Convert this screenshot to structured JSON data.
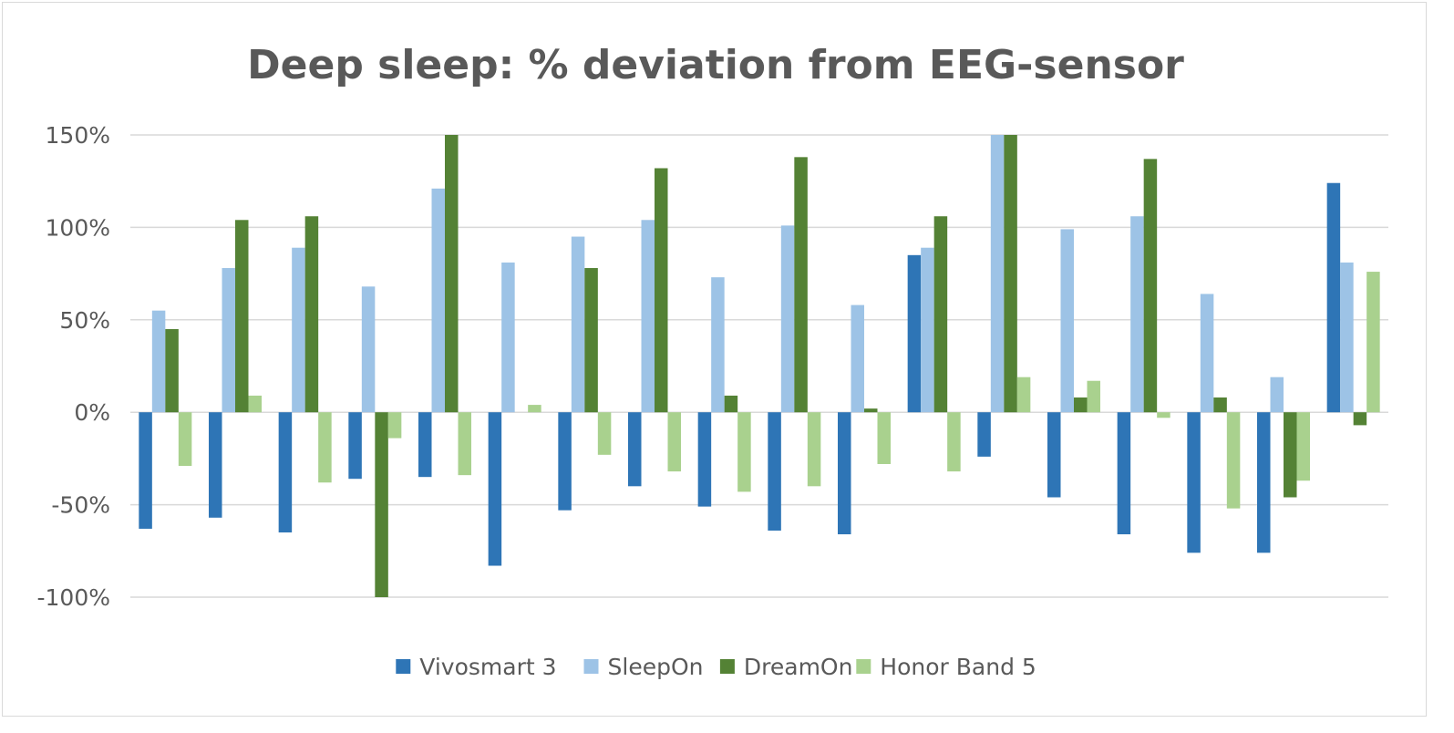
{
  "chart_data": {
    "type": "bar",
    "title": "Deep sleep: % deviation from EEG-sensor",
    "xlabel": "",
    "ylabel": "",
    "ylim": [
      -100,
      150
    ],
    "y_ticks": [
      {
        "value": 150,
        "label": "150%"
      },
      {
        "value": 100,
        "label": "100%"
      },
      {
        "value": 50,
        "label": "50%"
      },
      {
        "value": 0,
        "label": "0%"
      },
      {
        "value": -50,
        "label": "-50%"
      },
      {
        "value": -100,
        "label": "-100%"
      }
    ],
    "grid": true,
    "legend_position": "bottom",
    "categories_count": 18,
    "series": [
      {
        "name": "Vivosmart 3",
        "color": "#2e75b6",
        "values": [
          -63,
          -57,
          -65,
          -36,
          -35,
          -83,
          -53,
          -40,
          -51,
          -64,
          -66,
          85,
          -24,
          -46,
          -66,
          -76,
          -76,
          124
        ]
      },
      {
        "name": "SleepOn",
        "color": "#9dc3e6",
        "values": [
          55,
          78,
          89,
          68,
          121,
          81,
          95,
          104,
          73,
          101,
          58,
          89,
          150,
          99,
          106,
          64,
          19,
          81
        ]
      },
      {
        "name": "DreamOn",
        "color": "#548235",
        "values": [
          45,
          104,
          106,
          -100,
          150,
          0,
          78,
          132,
          9,
          138,
          2,
          106,
          150,
          8,
          137,
          8,
          -46,
          -7
        ]
      },
      {
        "name": "Honor Band 5",
        "color": "#a9d18e",
        "values": [
          -29,
          9,
          -38,
          -14,
          -34,
          4,
          -23,
          -32,
          -43,
          -40,
          -28,
          -32,
          19,
          17,
          -3,
          -52,
          -37,
          76
        ]
      }
    ]
  }
}
